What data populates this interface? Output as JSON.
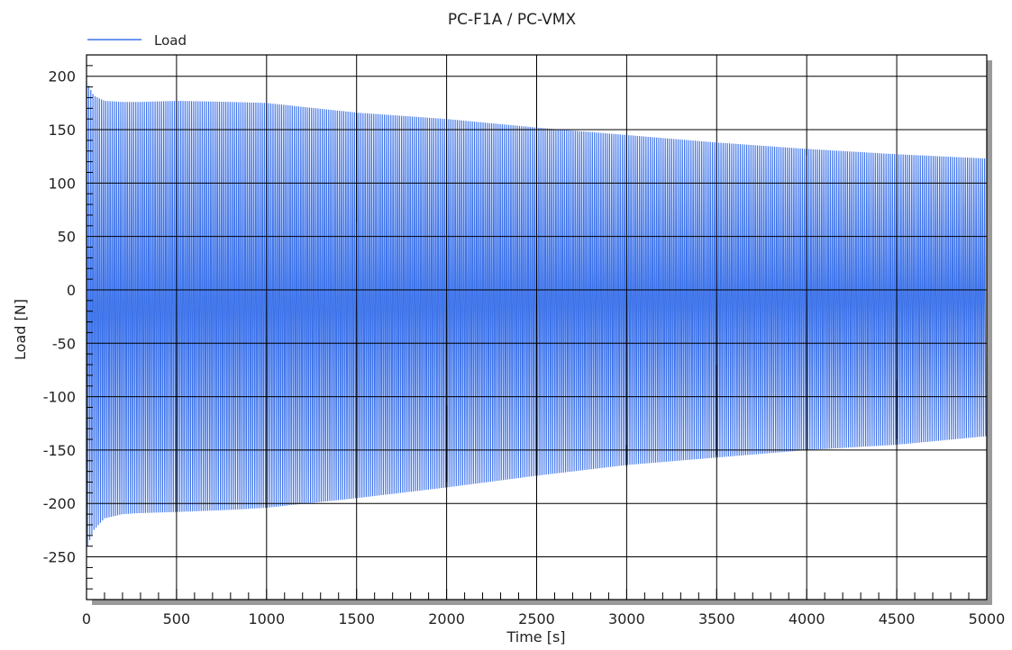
{
  "chart_data": {
    "type": "line",
    "title": "PC-F1A / PC-VMX",
    "xlabel": "Time [s]",
    "ylabel": "Load [N]",
    "xlim": [
      0,
      5000
    ],
    "ylim": [
      -290,
      220
    ],
    "xticks": [
      0,
      500,
      1000,
      1500,
      2000,
      2500,
      3000,
      3500,
      4000,
      4500,
      5000
    ],
    "yticks": [
      200,
      150,
      100,
      50,
      0,
      -50,
      -100,
      -150,
      -200,
      -250
    ],
    "grid": true,
    "legend": {
      "position": "top-left",
      "entries": [
        "Load"
      ]
    },
    "colors": {
      "series": "#3d73ea",
      "grid": "#000000",
      "frame_shadow": "#9a9a9a"
    },
    "series": [
      {
        "name": "Load",
        "cycle_count": 420,
        "max_envelope": {
          "x": [
            0,
            40,
            100,
            200,
            300,
            500,
            800,
            1000,
            1500,
            2000,
            2500,
            3000,
            3500,
            4000,
            4500,
            5000
          ],
          "y": [
            195,
            182,
            177,
            176,
            176,
            177,
            176,
            175,
            166,
            160,
            152,
            145,
            138,
            132,
            127,
            123
          ]
        },
        "min_envelope": {
          "x": [
            0,
            40,
            100,
            200,
            300,
            500,
            800,
            1000,
            1500,
            2000,
            2500,
            3000,
            3500,
            4000,
            4500,
            5000
          ],
          "y": [
            -242,
            -225,
            -214,
            -210,
            -209,
            -208,
            -206,
            -204,
            -195,
            -185,
            -174,
            -164,
            -157,
            -150,
            -145,
            -137
          ]
        },
        "spikes": [
          {
            "x": 1500,
            "y": [
              165,
              63
            ]
          },
          {
            "x": 2000,
            "y": [
              -180,
              -108
            ]
          },
          {
            "x": 3000,
            "y": [
              -165,
              -145
            ]
          },
          {
            "x": 3500,
            "y": [
              -155,
              -70
            ]
          },
          {
            "x": 4000,
            "y": [
              132,
              126
            ]
          },
          {
            "x": 4500,
            "y": [
              -140,
              -84
            ]
          }
        ]
      }
    ]
  }
}
